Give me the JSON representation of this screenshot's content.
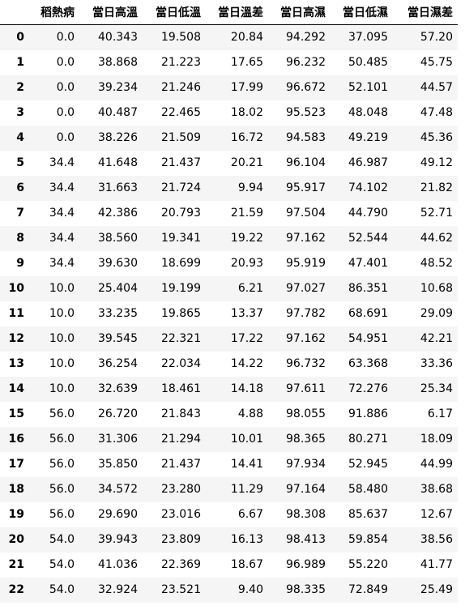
{
  "columns": [
    "稻熱病",
    "當日高溫",
    "當日低溫",
    "當日溫差",
    "當日高濕",
    "當日低濕",
    "當日濕差"
  ],
  "rows": [
    {
      "index": "0",
      "cells": [
        "0.0",
        "40.343",
        "19.508",
        "20.84",
        "94.292",
        "37.095",
        "57.20"
      ]
    },
    {
      "index": "1",
      "cells": [
        "0.0",
        "38.868",
        "21.223",
        "17.65",
        "96.232",
        "50.485",
        "45.75"
      ]
    },
    {
      "index": "2",
      "cells": [
        "0.0",
        "39.234",
        "21.246",
        "17.99",
        "96.672",
        "52.101",
        "44.57"
      ]
    },
    {
      "index": "3",
      "cells": [
        "0.0",
        "40.487",
        "22.465",
        "18.02",
        "95.523",
        "48.048",
        "47.48"
      ]
    },
    {
      "index": "4",
      "cells": [
        "0.0",
        "38.226",
        "21.509",
        "16.72",
        "94.583",
        "49.219",
        "45.36"
      ]
    },
    {
      "index": "5",
      "cells": [
        "34.4",
        "41.648",
        "21.437",
        "20.21",
        "96.104",
        "46.987",
        "49.12"
      ]
    },
    {
      "index": "6",
      "cells": [
        "34.4",
        "31.663",
        "21.724",
        "9.94",
        "95.917",
        "74.102",
        "21.82"
      ]
    },
    {
      "index": "7",
      "cells": [
        "34.4",
        "42.386",
        "20.793",
        "21.59",
        "97.504",
        "44.790",
        "52.71"
      ]
    },
    {
      "index": "8",
      "cells": [
        "34.4",
        "38.560",
        "19.341",
        "19.22",
        "97.162",
        "52.544",
        "44.62"
      ]
    },
    {
      "index": "9",
      "cells": [
        "34.4",
        "39.630",
        "18.699",
        "20.93",
        "95.919",
        "47.401",
        "48.52"
      ]
    },
    {
      "index": "10",
      "cells": [
        "10.0",
        "25.404",
        "19.199",
        "6.21",
        "97.027",
        "86.351",
        "10.68"
      ]
    },
    {
      "index": "11",
      "cells": [
        "10.0",
        "33.235",
        "19.865",
        "13.37",
        "97.782",
        "68.691",
        "29.09"
      ]
    },
    {
      "index": "12",
      "cells": [
        "10.0",
        "39.545",
        "22.321",
        "17.22",
        "97.162",
        "54.951",
        "42.21"
      ]
    },
    {
      "index": "13",
      "cells": [
        "10.0",
        "36.254",
        "22.034",
        "14.22",
        "96.732",
        "63.368",
        "33.36"
      ]
    },
    {
      "index": "14",
      "cells": [
        "10.0",
        "32.639",
        "18.461",
        "14.18",
        "97.611",
        "72.276",
        "25.34"
      ]
    },
    {
      "index": "15",
      "cells": [
        "56.0",
        "26.720",
        "21.843",
        "4.88",
        "98.055",
        "91.886",
        "6.17"
      ]
    },
    {
      "index": "16",
      "cells": [
        "56.0",
        "31.306",
        "21.294",
        "10.01",
        "98.365",
        "80.271",
        "18.09"
      ]
    },
    {
      "index": "17",
      "cells": [
        "56.0",
        "35.850",
        "21.437",
        "14.41",
        "97.934",
        "52.945",
        "44.99"
      ]
    },
    {
      "index": "18",
      "cells": [
        "56.0",
        "34.572",
        "23.280",
        "11.29",
        "97.164",
        "58.480",
        "38.68"
      ]
    },
    {
      "index": "19",
      "cells": [
        "56.0",
        "29.690",
        "23.016",
        "6.67",
        "98.308",
        "85.637",
        "12.67"
      ]
    },
    {
      "index": "20",
      "cells": [
        "54.0",
        "39.943",
        "23.809",
        "16.13",
        "98.413",
        "59.854",
        "38.56"
      ]
    },
    {
      "index": "21",
      "cells": [
        "54.0",
        "41.036",
        "22.369",
        "18.67",
        "96.989",
        "55.220",
        "41.77"
      ]
    },
    {
      "index": "22",
      "cells": [
        "54.0",
        "32.924",
        "23.521",
        "9.40",
        "98.335",
        "72.849",
        "25.49"
      ]
    }
  ]
}
